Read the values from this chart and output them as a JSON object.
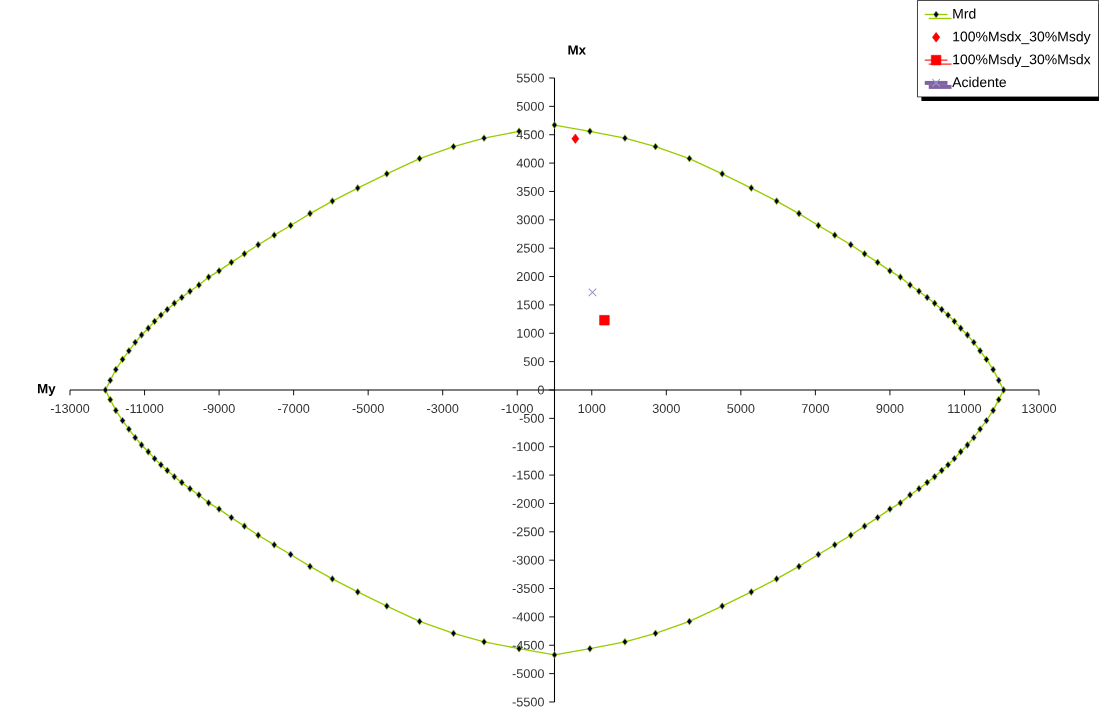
{
  "chart_data": {
    "type": "line",
    "xlabel": "My",
    "ylabel": "Mx",
    "xlim": [
      -13000,
      13000
    ],
    "ylim": [
      -5500,
      5500
    ],
    "xticks": [
      -13000,
      -11000,
      -9000,
      -7000,
      -5000,
      -3000,
      -1000,
      1000,
      3000,
      5000,
      7000,
      9000,
      11000,
      13000
    ],
    "yticks": [
      -5500,
      -5000,
      -4500,
      -4000,
      -3500,
      -3000,
      -2500,
      -2000,
      -1500,
      -1000,
      -500,
      0,
      500,
      1000,
      1500,
      2000,
      2500,
      3000,
      3500,
      4000,
      4500,
      5000,
      5500
    ],
    "grid": false,
    "legend": "top right",
    "series": [
      {
        "name": "Mrd",
        "marker": "diamond",
        "line_style": "solid",
        "color": "#99cc00",
        "x": [
          0,
          950,
          1890,
          2710,
          3620,
          4500,
          5280,
          5960,
          6560,
          7080,
          7520,
          7950,
          8320,
          8670,
          9000,
          9280,
          9540,
          9780,
          10000,
          10200,
          10390,
          10560,
          10730,
          10900,
          11080,
          11250,
          11420,
          11590,
          11770,
          11920,
          12050,
          11920,
          11770,
          11590,
          11420,
          11250,
          11080,
          10900,
          10730,
          10560,
          10390,
          10200,
          10000,
          9780,
          9540,
          9280,
          9000,
          8670,
          8320,
          7950,
          7520,
          7080,
          6560,
          5960,
          5280,
          4500,
          3620,
          2710,
          1890,
          950,
          0,
          -950,
          -1890,
          -2710,
          -3620,
          -4500,
          -5280,
          -5960,
          -6560,
          -7080,
          -7520,
          -7950,
          -8320,
          -8670,
          -9000,
          -9280,
          -9540,
          -9780,
          -10000,
          -10200,
          -10390,
          -10560,
          -10730,
          -10900,
          -11080,
          -11250,
          -11420,
          -11590,
          -11770,
          -11920,
          -12050,
          -11920,
          -11770,
          -11590,
          -11420,
          -11250,
          -11080,
          -10900,
          -10730,
          -10560,
          -10390,
          -10200,
          -10000,
          -9780,
          -9540,
          -9280,
          -9000,
          -8670,
          -8320,
          -7950,
          -7520,
          -7080,
          -6560,
          -5960,
          -5280,
          -4500,
          -3620,
          -2710,
          -1890,
          -950
        ],
        "values": [
          4670,
          4560,
          4440,
          4290,
          4080,
          3810,
          3560,
          3330,
          3110,
          2900,
          2730,
          2560,
          2400,
          2250,
          2100,
          1990,
          1850,
          1740,
          1630,
          1530,
          1420,
          1320,
          1210,
          1090,
          970,
          840,
          690,
          540,
          360,
          170,
          0,
          -170,
          -360,
          -540,
          -690,
          -840,
          -970,
          -1090,
          -1210,
          -1320,
          -1420,
          -1530,
          -1630,
          -1740,
          -1850,
          -1990,
          -2100,
          -2250,
          -2400,
          -2560,
          -2730,
          -2900,
          -3110,
          -3330,
          -3560,
          -3810,
          -4080,
          -4290,
          -4440,
          -4560,
          -4670,
          -4560,
          -4440,
          -4290,
          -4080,
          -3810,
          -3560,
          -3330,
          -3110,
          -2900,
          -2730,
          -2560,
          -2400,
          -2250,
          -2100,
          -1990,
          -1850,
          -1740,
          -1630,
          -1530,
          -1420,
          -1320,
          -1210,
          -1090,
          -970,
          -840,
          -690,
          -540,
          -360,
          -170,
          0,
          170,
          360,
          540,
          690,
          840,
          970,
          1090,
          1210,
          1320,
          1420,
          1530,
          1630,
          1740,
          1850,
          1990,
          2100,
          2250,
          2400,
          2560,
          2730,
          2900,
          3110,
          3330,
          3560,
          3810,
          4080,
          4290,
          4440,
          4560
        ]
      },
      {
        "name": "100%Msdx_30%Msdy",
        "type": "scatter",
        "marker": "diamond",
        "color": "#ff0000",
        "x": [
          560
        ],
        "values": [
          4430
        ]
      },
      {
        "name": "100%Msdy_30%Msdx",
        "marker": "square",
        "line_style": "solid",
        "color": "#ff0000",
        "x": [
          1340
        ],
        "values": [
          1230
        ]
      },
      {
        "name": "Acidente",
        "type": "line",
        "marker": "cross",
        "line_style": "solid",
        "color": "#9999cc",
        "x": [
          1020
        ],
        "values": [
          1720
        ]
      }
    ]
  }
}
